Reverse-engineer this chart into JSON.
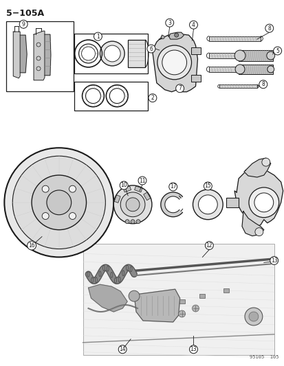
{
  "title_label": "5−105A",
  "footer_label": "95105  105",
  "background_color": "#ffffff",
  "line_color": "#1a1a1a",
  "figsize": [
    4.14,
    5.33
  ],
  "dpi": 100
}
